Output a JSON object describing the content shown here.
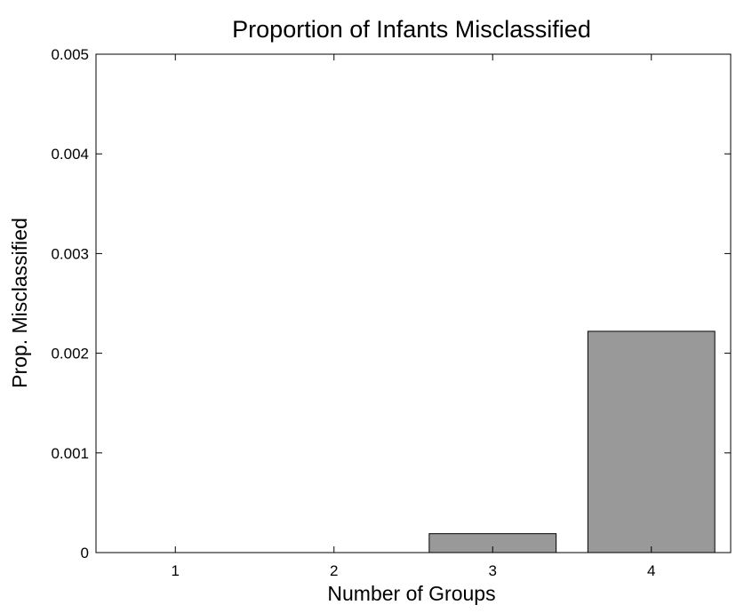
{
  "chart_data": {
    "type": "bar",
    "title": "Proportion of Infants Misclassified",
    "xlabel": "Number of Groups",
    "ylabel": "Prop. Misclassified",
    "categories": [
      "1",
      "2",
      "3",
      "4"
    ],
    "values": [
      0,
      0,
      0.00019,
      0.00222
    ],
    "ylim": [
      0,
      0.005
    ],
    "yticks": [
      "0",
      "0.001",
      "0.002",
      "0.003",
      "0.004",
      "0.005"
    ],
    "ytick_values": [
      0,
      0.001,
      0.002,
      0.003,
      0.004,
      0.005
    ],
    "bar_color": "#999999",
    "grid": false,
    "legend": false
  }
}
